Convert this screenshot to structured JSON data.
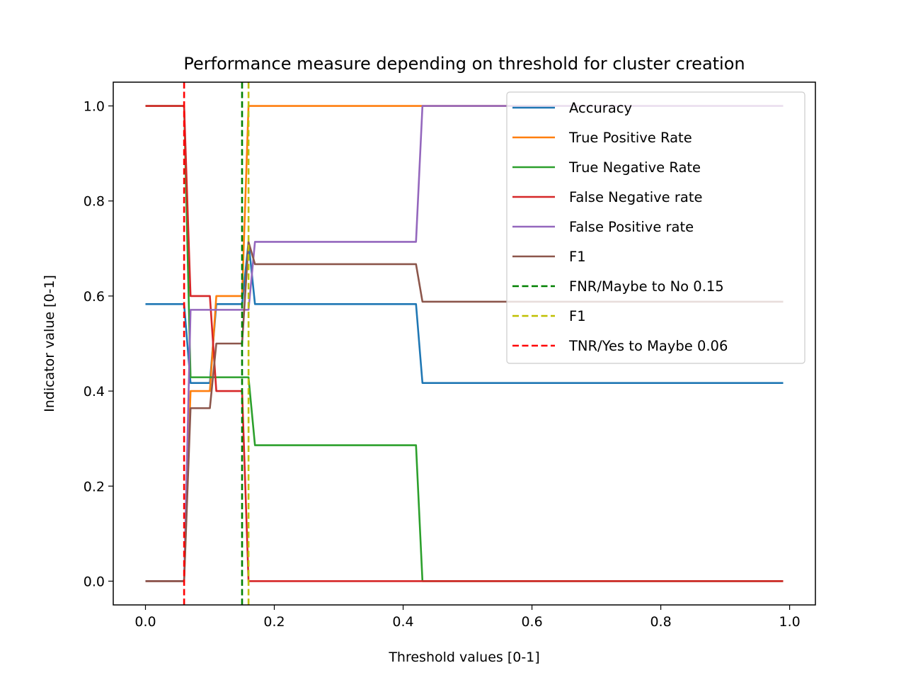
{
  "chart_data": {
    "type": "line",
    "title": "Performance measure depending on threshold for cluster creation",
    "xlabel": "Threshold values [0-1]",
    "ylabel": "Indicator value [0-1]",
    "xlim": [
      -0.05,
      1.04
    ],
    "ylim": [
      -0.05,
      1.05
    ],
    "xticks": [
      0.0,
      0.2,
      0.4,
      0.6,
      0.8,
      1.0
    ],
    "xtick_labels": [
      "0.0",
      "0.2",
      "0.4",
      "0.6",
      "0.8",
      "1.0"
    ],
    "yticks": [
      0.0,
      0.2,
      0.4,
      0.6,
      0.8,
      1.0
    ],
    "ytick_labels": [
      "0.0",
      "0.2",
      "0.4",
      "0.6",
      "0.8",
      "1.0"
    ],
    "grid": false,
    "legend_position": "top-right",
    "series": [
      {
        "name": "Accuracy",
        "color": "#1f77b4",
        "style": "solid",
        "points": [
          [
            0.0,
            0.583
          ],
          [
            0.06,
            0.583
          ],
          [
            0.07,
            0.417
          ],
          [
            0.1,
            0.417
          ],
          [
            0.11,
            0.583
          ],
          [
            0.15,
            0.583
          ],
          [
            0.16,
            0.714
          ],
          [
            0.17,
            0.583
          ],
          [
            0.42,
            0.583
          ],
          [
            0.43,
            0.417
          ],
          [
            0.99,
            0.417
          ]
        ]
      },
      {
        "name": "True Positive Rate",
        "color": "#ff7f0e",
        "style": "solid",
        "points": [
          [
            0.0,
            0.0
          ],
          [
            0.06,
            0.0
          ],
          [
            0.07,
            0.4
          ],
          [
            0.1,
            0.4
          ],
          [
            0.11,
            0.6
          ],
          [
            0.15,
            0.6
          ],
          [
            0.16,
            1.0
          ],
          [
            0.99,
            1.0
          ]
        ]
      },
      {
        "name": "True Negative Rate",
        "color": "#2ca02c",
        "style": "solid",
        "points": [
          [
            0.0,
            1.0
          ],
          [
            0.06,
            1.0
          ],
          [
            0.07,
            0.429
          ],
          [
            0.15,
            0.429
          ],
          [
            0.16,
            0.429
          ],
          [
            0.17,
            0.286
          ],
          [
            0.42,
            0.286
          ],
          [
            0.43,
            0.0
          ],
          [
            0.99,
            0.0
          ]
        ]
      },
      {
        "name": "False Negative rate",
        "color": "#d62728",
        "style": "solid",
        "points": [
          [
            0.0,
            1.0
          ],
          [
            0.06,
            1.0
          ],
          [
            0.07,
            0.6
          ],
          [
            0.1,
            0.6
          ],
          [
            0.11,
            0.4
          ],
          [
            0.15,
            0.4
          ],
          [
            0.16,
            0.0
          ],
          [
            0.99,
            0.0
          ]
        ]
      },
      {
        "name": "False Positive rate",
        "color": "#9467bd",
        "style": "solid",
        "points": [
          [
            0.0,
            0.0
          ],
          [
            0.06,
            0.0
          ],
          [
            0.07,
            0.571
          ],
          [
            0.15,
            0.571
          ],
          [
            0.16,
            0.571
          ],
          [
            0.17,
            0.714
          ],
          [
            0.42,
            0.714
          ],
          [
            0.43,
            1.0
          ],
          [
            0.99,
            1.0
          ]
        ]
      },
      {
        "name": "F1",
        "color": "#8c564b",
        "style": "solid",
        "points": [
          [
            0.0,
            0.0
          ],
          [
            0.06,
            0.0
          ],
          [
            0.07,
            0.364
          ],
          [
            0.1,
            0.364
          ],
          [
            0.11,
            0.5
          ],
          [
            0.15,
            0.5
          ],
          [
            0.16,
            0.714
          ],
          [
            0.17,
            0.667
          ],
          [
            0.42,
            0.667
          ],
          [
            0.43,
            0.588
          ],
          [
            0.99,
            0.588
          ]
        ]
      }
    ],
    "vlines": [
      {
        "name": "FNR/Maybe to No 0.15",
        "x": 0.15,
        "color": "#008000",
        "style": "dashed"
      },
      {
        "name": "F1",
        "x": 0.16,
        "color": "#bfbf00",
        "style": "dashed"
      },
      {
        "name": "TNR/Yes to Maybe 0.06",
        "x": 0.06,
        "color": "#ff0000",
        "style": "dashed"
      }
    ]
  }
}
